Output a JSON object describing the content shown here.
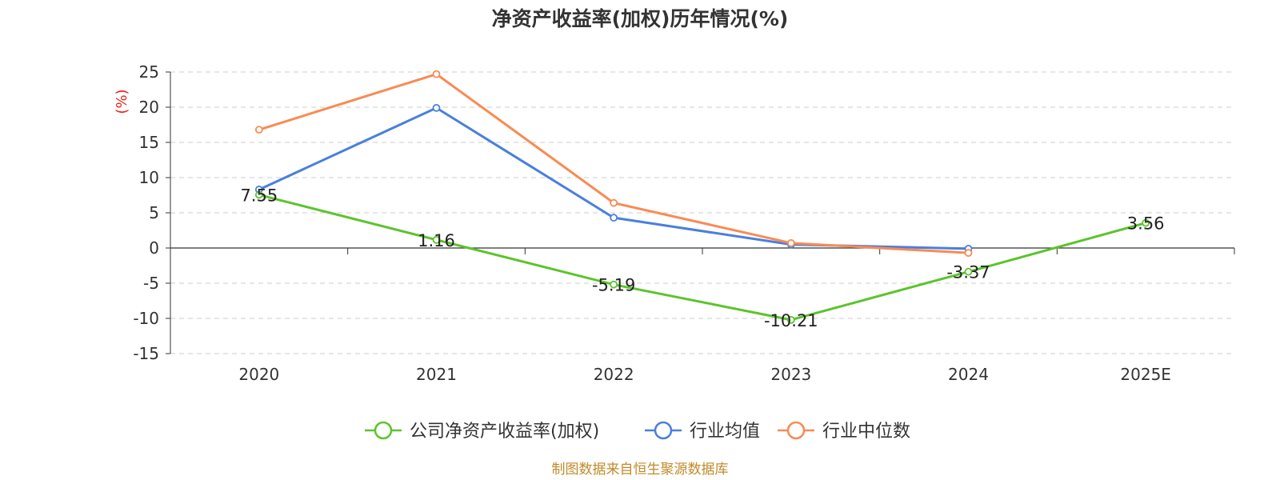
{
  "chart_data": {
    "type": "line",
    "title": "净资产收益率(加权)历年情况(%)",
    "ylabel": "(%)",
    "xlabel": "",
    "categories": [
      "2020",
      "2021",
      "2022",
      "2023",
      "2024",
      "2025E"
    ],
    "ylim": [
      -15,
      25
    ],
    "yticks": [
      25,
      20,
      15,
      10,
      5,
      0,
      -5,
      -10,
      -15
    ],
    "grid": true,
    "legend_position": "bottom",
    "series": [
      {
        "name": "公司净资产收益率(加权)",
        "color": "#5cc42d",
        "values": [
          7.55,
          1.16,
          -5.19,
          -10.21,
          -3.37,
          3.56
        ],
        "labels": [
          "7.55",
          "1.16",
          "-5.19",
          "-10.21",
          "-3.37",
          "3.56"
        ]
      },
      {
        "name": "行业均值",
        "color": "#4a7fde",
        "values": [
          8.3,
          19.9,
          4.3,
          0.5,
          -0.1,
          null
        ]
      },
      {
        "name": "行业中位数",
        "color": "#f88b53",
        "values": [
          16.8,
          24.7,
          6.4,
          0.7,
          -0.7,
          null
        ]
      }
    ]
  },
  "source": "制图数据来自恒生聚源数据库"
}
